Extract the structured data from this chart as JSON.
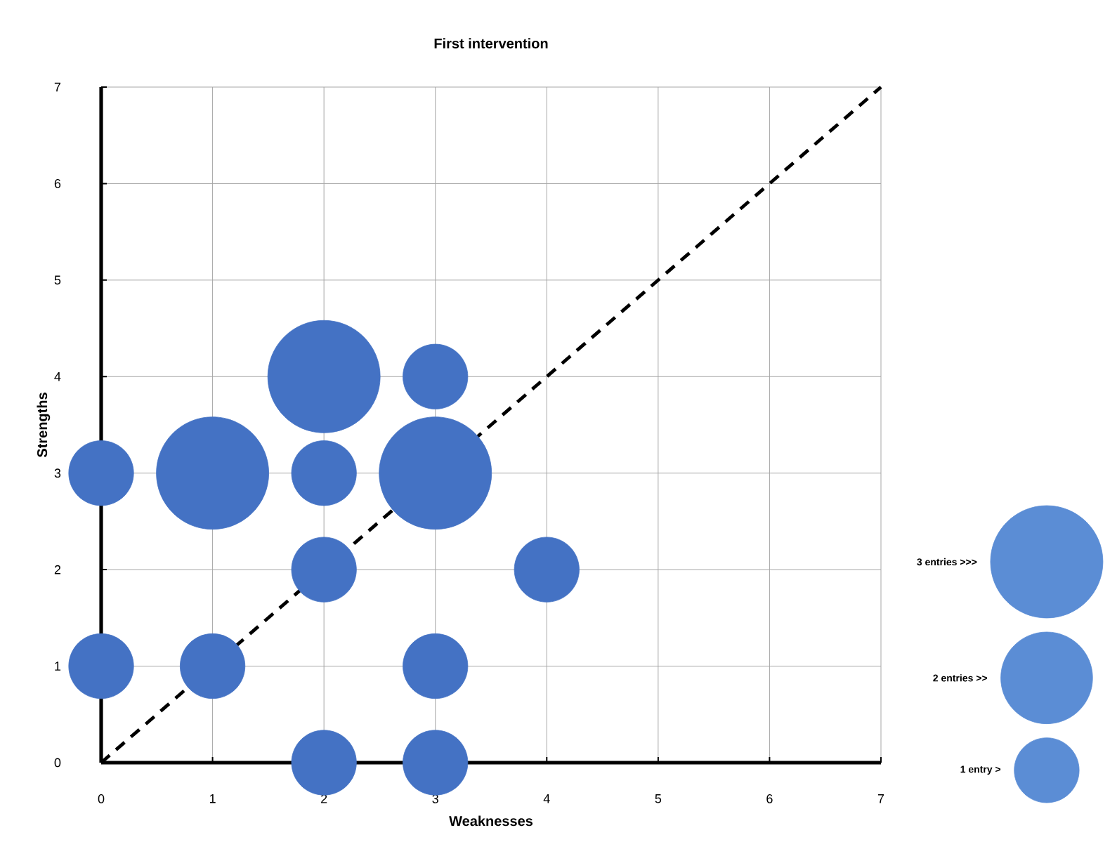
{
  "chart_data": {
    "type": "bubble",
    "title": "First intervention",
    "xlabel": "Weaknesses",
    "ylabel": "Strengths",
    "xlim": [
      0,
      7
    ],
    "ylim": [
      0,
      7
    ],
    "xticks": [
      0,
      1,
      2,
      3,
      4,
      5,
      6,
      7
    ],
    "yticks": [
      0,
      1,
      2,
      3,
      4,
      5,
      6,
      7
    ],
    "grid": true,
    "marker": "circle",
    "series": [
      {
        "color": "#4472c4",
        "x": [
          0,
          1,
          2,
          2,
          3,
          3,
          2,
          4,
          0,
          1,
          3,
          2,
          3
        ],
        "values": [
          3,
          3,
          4,
          3,
          3,
          4,
          2,
          2,
          1,
          1,
          1,
          0,
          0
        ],
        "sizes": [
          1,
          3,
          3,
          1,
          3,
          1,
          1,
          1,
          1,
          1,
          1,
          1,
          1
        ]
      },
      {
        "type": "line",
        "color": "#000000",
        "line_style": "dashed",
        "marker": "none",
        "x": [
          0,
          7
        ],
        "values": [
          0,
          7
        ]
      }
    ],
    "size_legend": [
      {
        "value": 3,
        "label": "3 entries >>>"
      },
      {
        "value": 2,
        "label": "2 entries >>"
      },
      {
        "value": 1,
        "label": "1 entry >"
      }
    ]
  }
}
